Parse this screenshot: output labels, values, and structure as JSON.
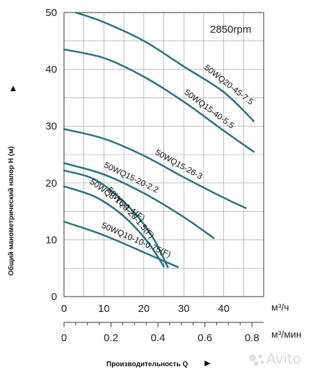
{
  "chart_data": {
    "type": "line",
    "title": "2850rpm",
    "ylabel": "Общий манометрический напор H (м)",
    "xlabel": "Производительность Q",
    "x_unit_primary": "м³/ч",
    "x_unit_secondary": "м³/мин",
    "xlim": [
      0,
      50
    ],
    "ylim": [
      0,
      50
    ],
    "x_ticks": [
      0,
      10,
      20,
      30,
      40
    ],
    "y_ticks": [
      0,
      10,
      20,
      30,
      40,
      50
    ],
    "x2_ticks": [
      0,
      0.2,
      0.4,
      0.6,
      0.8
    ],
    "x2_tick_labels": [
      "0",
      "0.2",
      "0.4",
      "0.6",
      "0.8"
    ],
    "grid": true,
    "series": [
      {
        "name": "50WQ20-45-7.5",
        "x": [
          3,
          10,
          20,
          30,
          40,
          47.5
        ],
        "y": [
          50,
          48.3,
          45,
          40.5,
          36,
          30.9
        ]
      },
      {
        "name": "50WQ15-40-5.5",
        "x": [
          0,
          10,
          20,
          30,
          40,
          47.5
        ],
        "y": [
          43.5,
          42,
          38.7,
          34.3,
          29.2,
          25.5
        ]
      },
      {
        "name": "50WQ15-26-3",
        "x": [
          0,
          10,
          20,
          30,
          40,
          45.5
        ],
        "y": [
          29.5,
          27.8,
          24.8,
          21,
          17.4,
          15.6
        ]
      },
      {
        "name": "50WQ15-20-2.2",
        "x": [
          0,
          10,
          20,
          30,
          37.5
        ],
        "y": [
          23.5,
          21.5,
          18.2,
          14,
          10.3
        ]
      },
      {
        "name": "50WQ8-20-1.5(F)",
        "x": [
          0,
          8,
          16,
          22,
          26
        ],
        "y": [
          22.2,
          20.5,
          16,
          10.7,
          5.2
        ]
      },
      {
        "name": "50WQ8-16-1.1(F)",
        "x": [
          0,
          8,
          15,
          21,
          25
        ],
        "y": [
          19.4,
          17.5,
          14.1,
          9.6,
          5.3
        ]
      },
      {
        "name": "50WQ10-10-0.75(F)",
        "x": [
          0,
          10,
          20,
          28.5
        ],
        "y": [
          13.2,
          10.8,
          7.8,
          5.2
        ]
      }
    ]
  }
}
